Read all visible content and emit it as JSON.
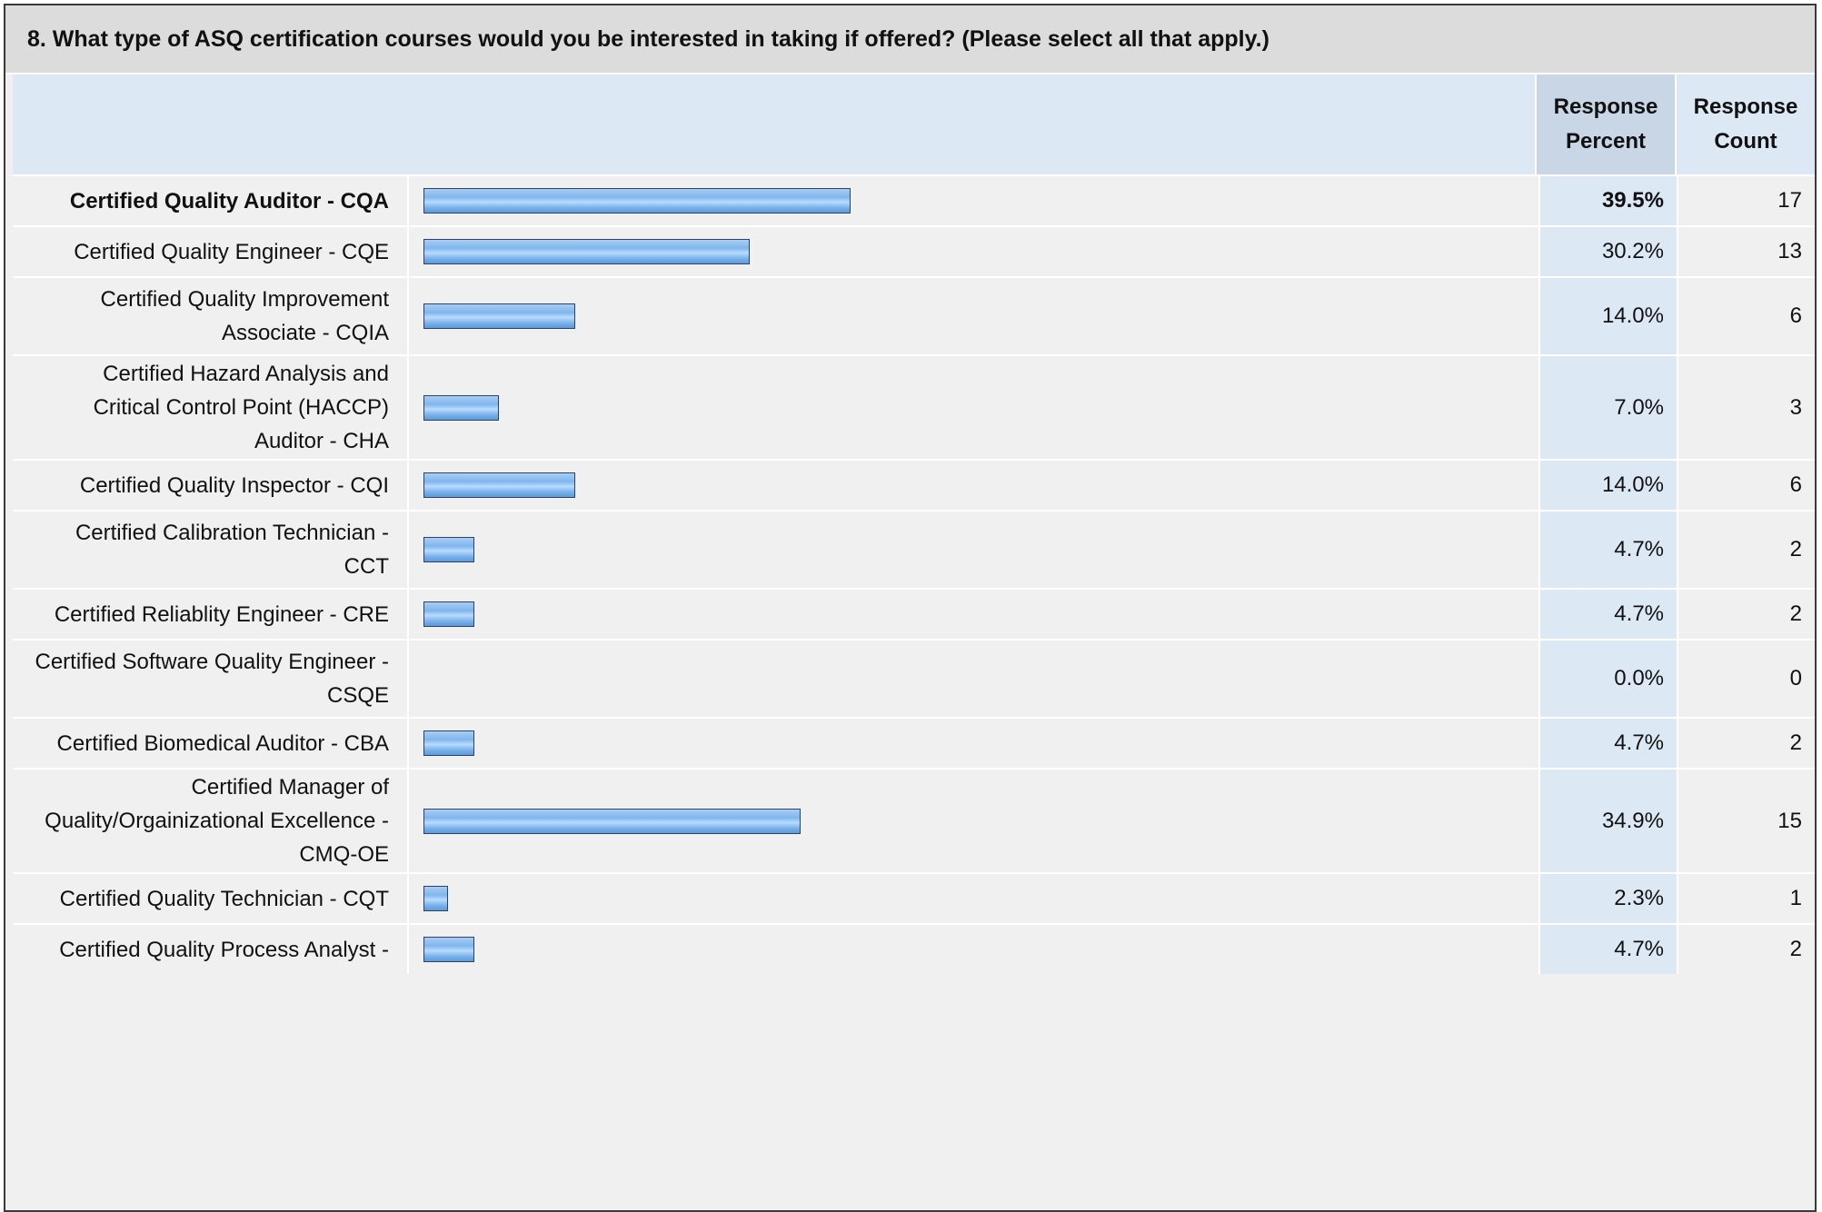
{
  "question": "8. What type of ASQ certification courses would you be interested in taking if offered? (Please select all that apply.)",
  "columns": {
    "percent_line1": "Response",
    "percent_line2": "Percent",
    "count_line1": "Response",
    "count_line2": "Count"
  },
  "colors": {
    "bar_fill": "#7fb6ee",
    "bar_border": "#2b4466",
    "percent_column": "#dde8f5",
    "header_band": "#dcdcdc"
  },
  "chart_data": {
    "type": "bar",
    "orientation": "horizontal",
    "title": "8. What type of ASQ certification courses would you be interested in taking if offered? (Please select all that apply.)",
    "xlim": [
      0,
      100
    ],
    "rows": [
      {
        "label": "Certified Quality Auditor - CQA",
        "label_lines": [
          "Certified Quality Auditor - CQA"
        ],
        "percent": 39.5,
        "percent_text": "39.5%",
        "count": 17,
        "count_text": "17"
      },
      {
        "label": "Certified Quality Engineer - CQE",
        "label_lines": [
          "Certified Quality Engineer - CQE"
        ],
        "percent": 30.2,
        "percent_text": "30.2%",
        "count": 13,
        "count_text": "13"
      },
      {
        "label": "Certified Quality Improvement Associate - CQIA",
        "label_lines": [
          "Certified Quality Improvement",
          "Associate - CQIA"
        ],
        "percent": 14.0,
        "percent_text": "14.0%",
        "count": 6,
        "count_text": "6"
      },
      {
        "label": "Certified Hazard Analysis and Critical Control Point (HACCP) Auditor - CHA",
        "label_lines": [
          "Certified Hazard Analysis and",
          "Critical Control Point (HACCP)",
          "Auditor - CHA"
        ],
        "percent": 7.0,
        "percent_text": "7.0%",
        "count": 3,
        "count_text": "3"
      },
      {
        "label": "Certified Quality Inspector - CQI",
        "label_lines": [
          "Certified Quality Inspector - CQI"
        ],
        "percent": 14.0,
        "percent_text": "14.0%",
        "count": 6,
        "count_text": "6"
      },
      {
        "label": "Certified Calibration Technician - CCT",
        "label_lines": [
          "Certified Calibration Technician -",
          "CCT"
        ],
        "percent": 4.7,
        "percent_text": "4.7%",
        "count": 2,
        "count_text": "2"
      },
      {
        "label": "Certified Reliablity Engineer - CRE",
        "label_lines": [
          "Certified Reliablity Engineer - CRE"
        ],
        "percent": 4.7,
        "percent_text": "4.7%",
        "count": 2,
        "count_text": "2"
      },
      {
        "label": "Certified Software Quality Engineer - CSQE",
        "label_lines": [
          "Certified Software Quality Engineer -",
          "CSQE"
        ],
        "percent": 0.0,
        "percent_text": "0.0%",
        "count": 0,
        "count_text": "0"
      },
      {
        "label": "Certified Biomedical Auditor - CBA",
        "label_lines": [
          "Certified Biomedical Auditor - CBA"
        ],
        "percent": 4.7,
        "percent_text": "4.7%",
        "count": 2,
        "count_text": "2"
      },
      {
        "label": "Certified Manager of Quality/Orgainizational Excellence - CMQ-OE",
        "label_lines": [
          "Certified Manager of",
          "Quality/Orgainizational Excellence -",
          "CMQ-OE"
        ],
        "percent": 34.9,
        "percent_text": "34.9%",
        "count": 15,
        "count_text": "15"
      },
      {
        "label": "Certified Quality Technician - CQT",
        "label_lines": [
          "Certified Quality Technician - CQT"
        ],
        "percent": 2.3,
        "percent_text": "2.3%",
        "count": 1,
        "count_text": "1"
      },
      {
        "label": "Certified Quality Process Analyst -",
        "label_lines": [
          "Certified Quality Process Analyst -"
        ],
        "percent": 4.7,
        "percent_text": "4.7%",
        "count": 2,
        "count_text": "2"
      }
    ]
  }
}
